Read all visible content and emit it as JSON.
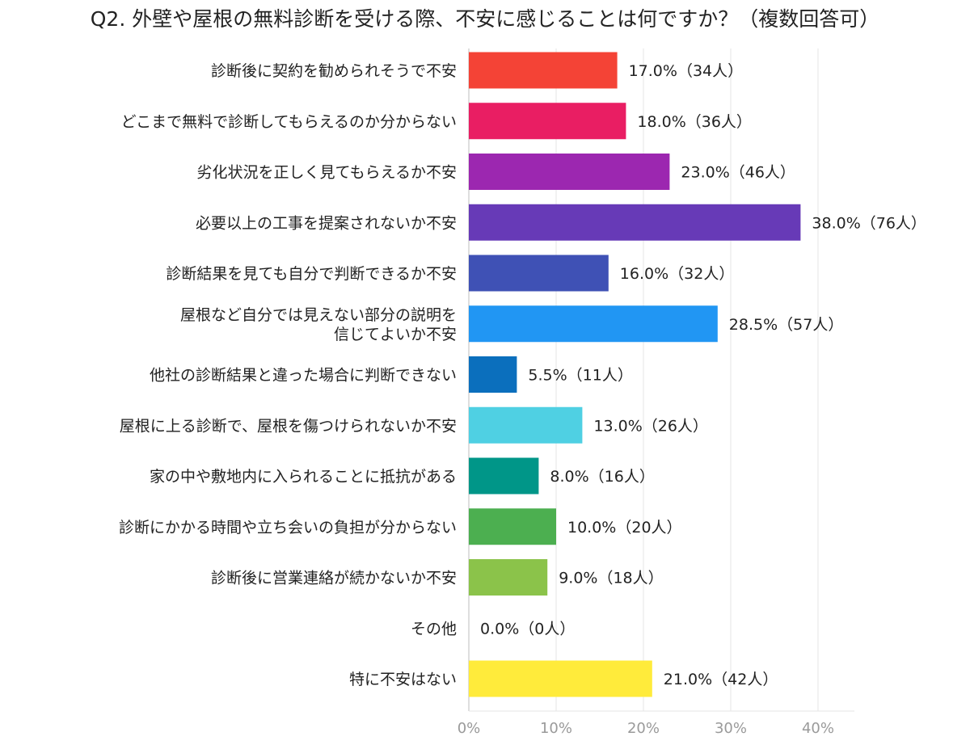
{
  "title": "Q2. 外壁や屋根の無料診断を受ける際、不安に感じることは何ですか？（複数回答可）",
  "chart_data": {
    "type": "bar",
    "orientation": "horizontal",
    "xlim": [
      0,
      40
    ],
    "x_ticks": [
      "0%",
      "10%",
      "20%",
      "30%",
      "40%"
    ],
    "grid": true,
    "categories": [
      [
        "診断後に契約を勧められそうで不安"
      ],
      [
        "どこまで無料で診断してもらえるのか分からない"
      ],
      [
        "劣化状況を正しく見てもらえるか不安"
      ],
      [
        "必要以上の工事を提案されないか不安"
      ],
      [
        "診断結果を見ても自分で判断できるか不安"
      ],
      [
        "屋根など自分では見えない部分の説明を",
        "信じてよいか不安"
      ],
      [
        "他社の診断結果と違った場合に判断できない"
      ],
      [
        "屋根に上る診断で、屋根を傷つけられないか不安"
      ],
      [
        "家の中や敷地内に入られることに抵抗がある"
      ],
      [
        "診断にかかる時間や立ち会いの負担が分からない"
      ],
      [
        "診断後に営業連絡が続かないか不安"
      ],
      [
        "その他"
      ],
      [
        "特に不安はない"
      ]
    ],
    "values": [
      17.0,
      18.0,
      23.0,
      38.0,
      16.0,
      28.5,
      5.5,
      13.0,
      8.0,
      10.0,
      9.0,
      0.0,
      21.0
    ],
    "value_labels": [
      "17.0%（34人）",
      "18.0%（36人）",
      "23.0%（46人）",
      "38.0%（76人）",
      "16.0%（32人）",
      "28.5%（57人）",
      "5.5%（11人）",
      "13.0%（26人）",
      "8.0%（16人）",
      "10.0%（20人）",
      "9.0%（18人）",
      "0.0%（0人）",
      "21.0%（42人）"
    ],
    "colors": [
      "#f44336",
      "#e91e63",
      "#9c27b0",
      "#673ab7",
      "#3f51b5",
      "#2196f3",
      "#0b6fbd",
      "#4fd0e3",
      "#009688",
      "#4caf50",
      "#8bc34a",
      "#cddc39",
      "#ffeb3b"
    ]
  }
}
